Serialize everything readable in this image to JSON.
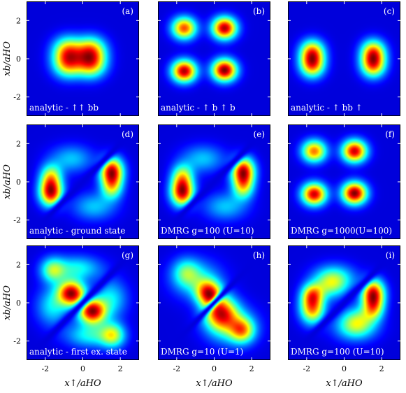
{
  "chart_data": {
    "type": "heatmap",
    "colormap": "jet",
    "grid": "off",
    "xlabel": "x↑/aHO",
    "ylabel": "xb/aHO",
    "xlim": [
      -3,
      3
    ],
    "ylim": [
      -3,
      3
    ],
    "xticks": [
      "-2",
      "0",
      "2"
    ],
    "yticks": [
      "2",
      "0",
      "-2"
    ],
    "panels": [
      {
        "id": "(a)",
        "caption": "analytic - ↑↑ bb",
        "row": 0,
        "col": 0,
        "mode": "gauss",
        "blobs": [
          [
            -0.8,
            0.45,
            0.55,
            0.5,
            0.95
          ],
          [
            0.45,
            0.45,
            0.55,
            0.5,
            1.0
          ],
          [
            -0.8,
            -0.3,
            0.55,
            0.5,
            0.95
          ],
          [
            0.45,
            -0.3,
            0.55,
            0.5,
            1.0
          ]
        ]
      },
      {
        "id": "(b)",
        "caption": "analytic - ↑ b ↑ b",
        "row": 0,
        "col": 1,
        "mode": "gauss",
        "blobs": [
          [
            -1.6,
            1.6,
            0.45,
            0.4,
            0.78
          ],
          [
            0.55,
            1.6,
            0.45,
            0.4,
            0.95
          ],
          [
            -1.6,
            -0.65,
            0.45,
            0.4,
            0.95
          ],
          [
            0.55,
            -0.6,
            0.45,
            0.4,
            1.0
          ]
        ]
      },
      {
        "id": "(c)",
        "caption": "analytic - ↑ bb ↑",
        "row": 0,
        "col": 2,
        "mode": "gauss",
        "blobs": [
          [
            -1.7,
            0.35,
            0.45,
            0.45,
            1.0
          ],
          [
            -1.7,
            -0.35,
            0.45,
            0.45,
            1.0
          ],
          [
            1.55,
            0.35,
            0.45,
            0.45,
            1.0
          ],
          [
            1.55,
            -0.35,
            0.45,
            0.45,
            1.0
          ]
        ]
      },
      {
        "id": "(d)",
        "caption": "analytic - ground state",
        "row": 1,
        "col": 0,
        "mode": "diag",
        "cut": 0.16,
        "blobs": [
          [
            -1.7,
            -0.55,
            0.42,
            0.5,
            1.0
          ],
          [
            1.55,
            0.55,
            0.42,
            0.5,
            1.0
          ],
          [
            -1.7,
            0.3,
            0.4,
            0.45,
            0.5
          ],
          [
            1.55,
            -0.3,
            0.4,
            0.45,
            0.5
          ],
          [
            -0.6,
            1.2,
            0.8,
            0.5,
            0.28
          ],
          [
            0.6,
            -1.3,
            0.8,
            0.5,
            0.28
          ]
        ]
      },
      {
        "id": "(e)",
        "caption": "DMRG g=100 (U=10)",
        "row": 1,
        "col": 1,
        "mode": "diag",
        "cut": 0.16,
        "blobs": [
          [
            -1.7,
            -0.55,
            0.42,
            0.5,
            1.0
          ],
          [
            1.55,
            0.55,
            0.42,
            0.5,
            1.0
          ],
          [
            -1.7,
            0.3,
            0.4,
            0.45,
            0.5
          ],
          [
            1.55,
            -0.3,
            0.4,
            0.45,
            0.5
          ],
          [
            -0.6,
            1.2,
            0.8,
            0.5,
            0.28
          ],
          [
            0.6,
            -1.3,
            0.8,
            0.5,
            0.28
          ]
        ]
      },
      {
        "id": "(f)",
        "caption": "DMRG g=1000(U=100)",
        "row": 1,
        "col": 2,
        "mode": "gauss",
        "blobs": [
          [
            -1.6,
            1.6,
            0.45,
            0.4,
            0.72
          ],
          [
            0.55,
            1.6,
            0.45,
            0.4,
            0.9
          ],
          [
            -1.6,
            -0.65,
            0.45,
            0.4,
            0.9
          ],
          [
            0.55,
            -0.6,
            0.45,
            0.4,
            0.98
          ]
        ]
      },
      {
        "id": "(g)",
        "caption": "analytic - first ex. state",
        "row": 2,
        "col": 0,
        "mode": "diag",
        "cut": 0.16,
        "blobs": [
          [
            -0.6,
            0.5,
            0.5,
            0.45,
            1.0
          ],
          [
            0.5,
            -0.45,
            0.5,
            0.45,
            1.0
          ],
          [
            -1.6,
            1.7,
            0.45,
            0.45,
            0.45
          ],
          [
            1.6,
            -1.7,
            0.45,
            0.45,
            0.5
          ],
          [
            -0.3,
            1.8,
            0.9,
            0.45,
            0.35
          ],
          [
            0.4,
            -1.7,
            0.9,
            0.45,
            0.35
          ],
          [
            -1.6,
            -0.2,
            0.6,
            0.7,
            0.32
          ],
          [
            1.5,
            0.2,
            0.6,
            0.7,
            0.32
          ]
        ]
      },
      {
        "id": "(h)",
        "caption": "DMRG g=10 (U=1)",
        "row": 2,
        "col": 1,
        "mode": "diag",
        "cut": 0.13,
        "blobs": [
          [
            -0.3,
            0.5,
            0.45,
            0.45,
            1.0
          ],
          [
            0.35,
            -0.5,
            0.6,
            0.6,
            1.0
          ],
          [
            1.5,
            -1.45,
            0.45,
            0.45,
            0.7
          ],
          [
            -1.5,
            1.6,
            0.5,
            0.5,
            0.4
          ],
          [
            0.9,
            -1.2,
            0.9,
            0.7,
            0.45
          ],
          [
            -0.9,
            1.2,
            0.9,
            0.7,
            0.4
          ]
        ]
      },
      {
        "id": "(i)",
        "caption": "DMRG g=100 (U=10)",
        "row": 2,
        "col": 2,
        "mode": "diag",
        "cut": 0.16,
        "blobs": [
          [
            -1.7,
            -0.3,
            0.45,
            0.55,
            0.78
          ],
          [
            1.55,
            0.5,
            0.42,
            0.5,
            0.95
          ],
          [
            -1.7,
            0.45,
            0.4,
            0.4,
            0.55
          ],
          [
            1.55,
            -0.3,
            0.4,
            0.45,
            0.55
          ],
          [
            -0.5,
            1.3,
            0.8,
            0.5,
            0.35
          ],
          [
            0.6,
            -1.3,
            0.8,
            0.5,
            0.35
          ],
          [
            -0.7,
            0.9,
            0.6,
            0.5,
            0.35
          ],
          [
            0.7,
            -0.9,
            0.6,
            0.5,
            0.35
          ]
        ]
      }
    ]
  }
}
